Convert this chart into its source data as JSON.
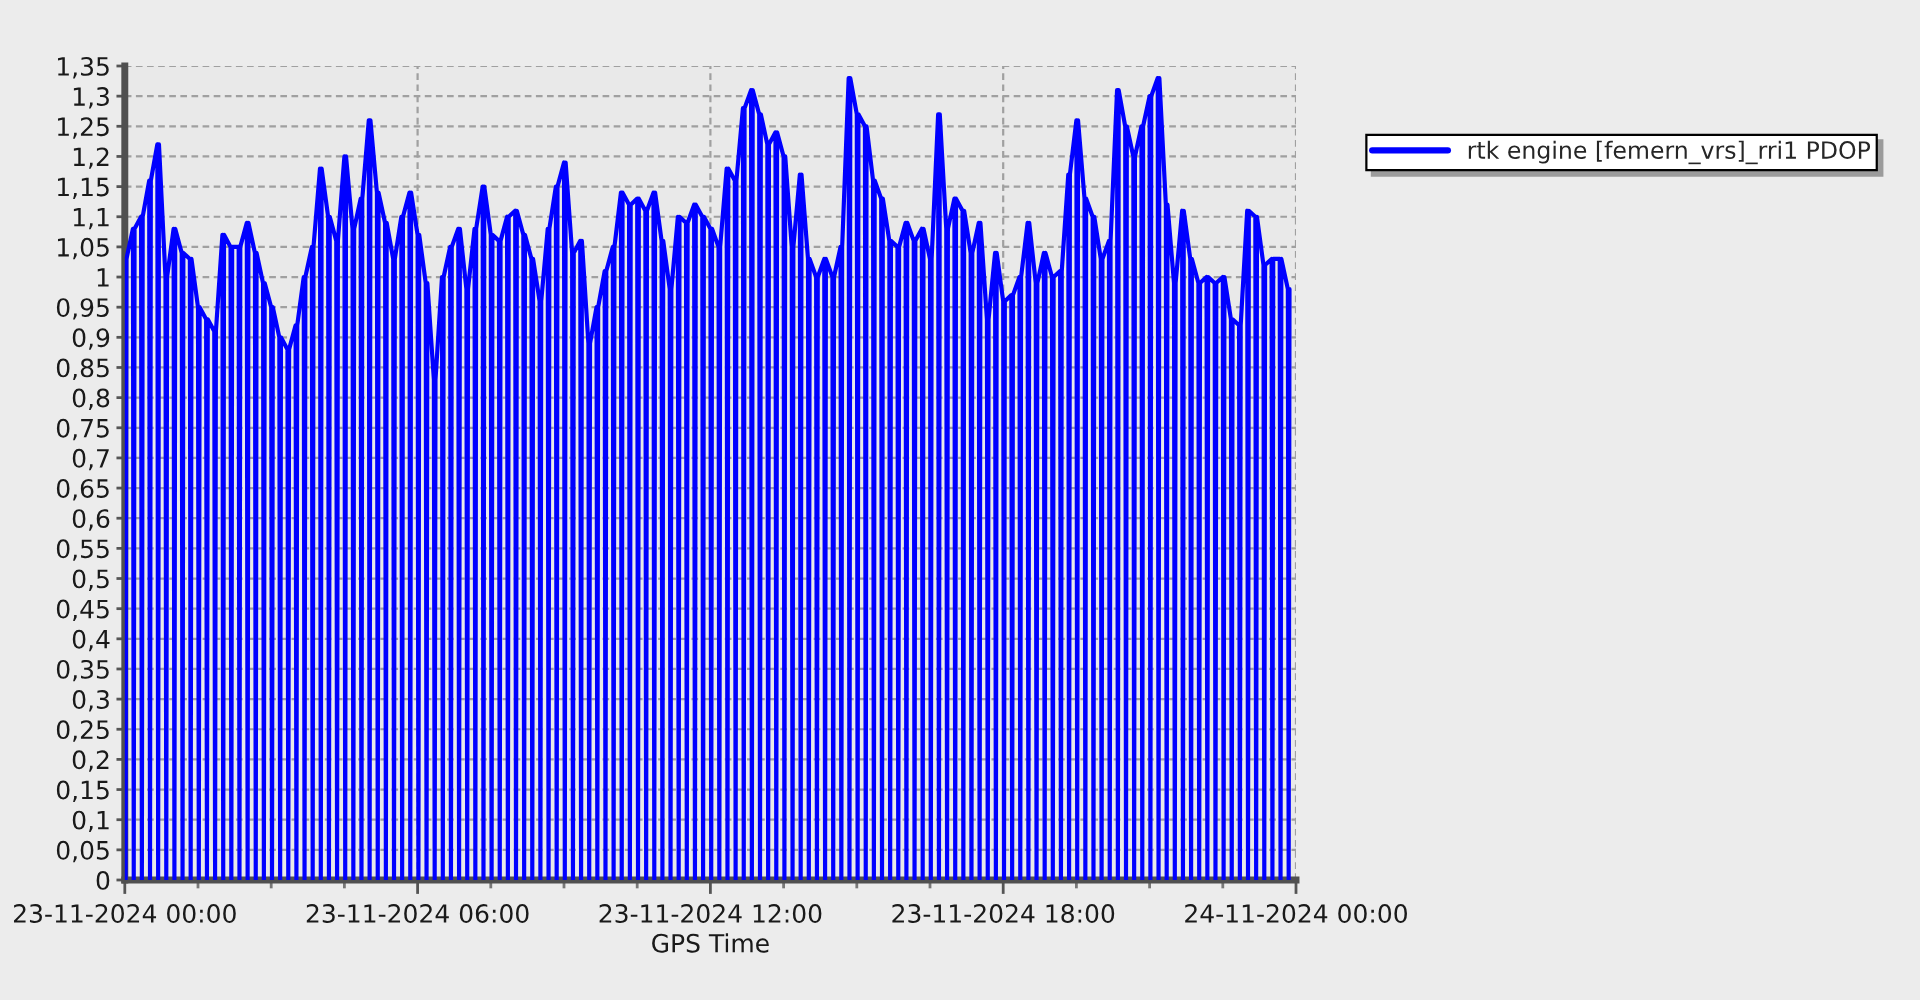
{
  "chart_data": {
    "type": "line",
    "xlabel": "GPS Time",
    "grid": true,
    "legend": "top right",
    "series": [
      {
        "name": "rtk engine [femern_vrs]_rri1 PDOP",
        "color": "#0000ff",
        "x": [
          "2024-11-23T00:00",
          "2024-11-23T00:01",
          "2024-11-23T00:02",
          "2024-11-23T00:10",
          "2024-11-23T00:11",
          "2024-11-23T00:12",
          "2024-11-23T00:20",
          "2024-11-23T00:21",
          "2024-11-23T00:22",
          "2024-11-23T00:30",
          "2024-11-23T00:31",
          "2024-11-23T00:32",
          "2024-11-23T00:40",
          "2024-11-23T00:41",
          "2024-11-23T00:42",
          "2024-11-23T00:50",
          "2024-11-23T00:51",
          "2024-11-23T00:52",
          "2024-11-23T01:00",
          "2024-11-23T01:01",
          "2024-11-23T01:02",
          "2024-11-23T01:10",
          "2024-11-23T01:11",
          "2024-11-23T01:12",
          "2024-11-23T01:20",
          "2024-11-23T01:21",
          "2024-11-23T01:22",
          "2024-11-23T01:30",
          "2024-11-23T01:31",
          "2024-11-23T01:32",
          "2024-11-23T01:40",
          "2024-11-23T01:41",
          "2024-11-23T01:42",
          "2024-11-23T01:50",
          "2024-11-23T01:51",
          "2024-11-23T01:52",
          "2024-11-23T02:00",
          "2024-11-23T02:01",
          "2024-11-23T02:02",
          "2024-11-23T02:10",
          "2024-11-23T02:11",
          "2024-11-23T02:12",
          "2024-11-23T02:20",
          "2024-11-23T02:21",
          "2024-11-23T02:22",
          "2024-11-23T02:30",
          "2024-11-23T02:31",
          "2024-11-23T02:32",
          "2024-11-23T02:40",
          "2024-11-23T02:41",
          "2024-11-23T02:42",
          "2024-11-23T02:50",
          "2024-11-23T02:51",
          "2024-11-23T02:52",
          "2024-11-23T03:00",
          "2024-11-23T03:01",
          "2024-11-23T03:02",
          "2024-11-23T03:10",
          "2024-11-23T03:11",
          "2024-11-23T03:12",
          "2024-11-23T03:20",
          "2024-11-23T03:21",
          "2024-11-23T03:22",
          "2024-11-23T03:30",
          "2024-11-23T03:31",
          "2024-11-23T03:32",
          "2024-11-23T03:40",
          "2024-11-23T03:41",
          "2024-11-23T03:42",
          "2024-11-23T03:50",
          "2024-11-23T03:51",
          "2024-11-23T03:52",
          "2024-11-23T04:00",
          "2024-11-23T04:01",
          "2024-11-23T04:02",
          "2024-11-23T04:10",
          "2024-11-23T04:11",
          "2024-11-23T04:12",
          "2024-11-23T04:20",
          "2024-11-23T04:21",
          "2024-11-23T04:22",
          "2024-11-23T04:30",
          "2024-11-23T04:31",
          "2024-11-23T04:32",
          "2024-11-23T04:40",
          "2024-11-23T04:41",
          "2024-11-23T04:42",
          "2024-11-23T04:50",
          "2024-11-23T04:51",
          "2024-11-23T04:52",
          "2024-11-23T05:00",
          "2024-11-23T05:01",
          "2024-11-23T05:02",
          "2024-11-23T05:10",
          "2024-11-23T05:11",
          "2024-11-23T05:12",
          "2024-11-23T05:20",
          "2024-11-23T05:21",
          "2024-11-23T05:22",
          "2024-11-23T05:30",
          "2024-11-23T05:31",
          "2024-11-23T05:32",
          "2024-11-23T05:40",
          "2024-11-23T05:41",
          "2024-11-23T05:42",
          "2024-11-23T05:50",
          "2024-11-23T05:51",
          "2024-11-23T05:52",
          "2024-11-23T06:00",
          "2024-11-23T06:01",
          "2024-11-23T06:02",
          "2024-11-23T06:10",
          "2024-11-23T06:11",
          "2024-11-23T06:12",
          "2024-11-23T06:20",
          "2024-11-23T06:21",
          "2024-11-23T06:22",
          "2024-11-23T06:30",
          "2024-11-23T06:31",
          "2024-11-23T06:32",
          "2024-11-23T06:40",
          "2024-11-23T06:41",
          "2024-11-23T06:42",
          "2024-11-23T06:50",
          "2024-11-23T06:51",
          "2024-11-23T06:52",
          "2024-11-23T07:00",
          "2024-11-23T07:01",
          "2024-11-23T07:02",
          "2024-11-23T07:10",
          "2024-11-23T07:11",
          "2024-11-23T07:12",
          "2024-11-23T07:20",
          "2024-11-23T07:21",
          "2024-11-23T07:22",
          "2024-11-23T07:30",
          "2024-11-23T07:31",
          "2024-11-23T07:32",
          "2024-11-23T07:40",
          "2024-11-23T07:41",
          "2024-11-23T07:42",
          "2024-11-23T07:50",
          "2024-11-23T07:51",
          "2024-11-23T07:52",
          "2024-11-23T08:00",
          "2024-11-23T08:01",
          "2024-11-23T08:02",
          "2024-11-23T08:10",
          "2024-11-23T08:11",
          "2024-11-23T08:12",
          "2024-11-23T08:20",
          "2024-11-23T08:21",
          "2024-11-23T08:22",
          "2024-11-23T08:30",
          "2024-11-23T08:31",
          "2024-11-23T08:32",
          "2024-11-23T08:40",
          "2024-11-23T08:41",
          "2024-11-23T08:42",
          "2024-11-23T08:50",
          "2024-11-23T08:51",
          "2024-11-23T08:52",
          "2024-11-23T09:00",
          "2024-11-23T09:01",
          "2024-11-23T09:02",
          "2024-11-23T09:10",
          "2024-11-23T09:11",
          "2024-11-23T09:12",
          "2024-11-23T09:20",
          "2024-11-23T09:21",
          "2024-11-23T09:22",
          "2024-11-23T09:30",
          "2024-11-23T09:31",
          "2024-11-23T09:32",
          "2024-11-23T09:40",
          "2024-11-23T09:41",
          "2024-11-23T09:42",
          "2024-11-23T09:50",
          "2024-11-23T09:51",
          "2024-11-23T09:52",
          "2024-11-23T10:00",
          "2024-11-23T10:01",
          "2024-11-23T10:02",
          "2024-11-23T10:10",
          "2024-11-23T10:11",
          "2024-11-23T10:12",
          "2024-11-23T10:20",
          "2024-11-23T10:21",
          "2024-11-23T10:22",
          "2024-11-23T10:30",
          "2024-11-23T10:31",
          "2024-11-23T10:32",
          "2024-11-23T10:40",
          "2024-11-23T10:41",
          "2024-11-23T10:42",
          "2024-11-23T10:50",
          "2024-11-23T10:51",
          "2024-11-23T10:52",
          "2024-11-23T11:00",
          "2024-11-23T11:01",
          "2024-11-23T11:02",
          "2024-11-23T11:10",
          "2024-11-23T11:11",
          "2024-11-23T11:12",
          "2024-11-23T11:20",
          "2024-11-23T11:21",
          "2024-11-23T11:22",
          "2024-11-23T11:30",
          "2024-11-23T11:31",
          "2024-11-23T11:32",
          "2024-11-23T11:40",
          "2024-11-23T11:41",
          "2024-11-23T11:42",
          "2024-11-23T11:50",
          "2024-11-23T11:51",
          "2024-11-23T11:52",
          "2024-11-23T12:00",
          "2024-11-23T12:01",
          "2024-11-23T12:02",
          "2024-11-23T12:10",
          "2024-11-23T12:11",
          "2024-11-23T12:12",
          "2024-11-23T12:20",
          "2024-11-23T12:21",
          "2024-11-23T12:22",
          "2024-11-23T12:30",
          "2024-11-23T12:31",
          "2024-11-23T12:32",
          "2024-11-23T12:40",
          "2024-11-23T12:41",
          "2024-11-23T12:42",
          "2024-11-23T12:50",
          "2024-11-23T12:51",
          "2024-11-23T12:52",
          "2024-11-23T13:00",
          "2024-11-23T13:01",
          "2024-11-23T13:02",
          "2024-11-23T13:10",
          "2024-11-23T13:11",
          "2024-11-23T13:12",
          "2024-11-23T13:20",
          "2024-11-23T13:21",
          "2024-11-23T13:22",
          "2024-11-23T13:30",
          "2024-11-23T13:31",
          "2024-11-23T13:32",
          "2024-11-23T13:40",
          "2024-11-23T13:41",
          "2024-11-23T13:42",
          "2024-11-23T13:50",
          "2024-11-23T13:51",
          "2024-11-23T13:52",
          "2024-11-23T14:00",
          "2024-11-23T14:01",
          "2024-11-23T14:02",
          "2024-11-23T14:10",
          "2024-11-23T14:11",
          "2024-11-23T14:12",
          "2024-11-23T14:20",
          "2024-11-23T14:21",
          "2024-11-23T14:22",
          "2024-11-23T14:30",
          "2024-11-23T14:31",
          "2024-11-23T14:32",
          "2024-11-23T14:40",
          "2024-11-23T14:41",
          "2024-11-23T14:42",
          "2024-11-23T14:50",
          "2024-11-23T14:51",
          "2024-11-23T14:52",
          "2024-11-23T15:00",
          "2024-11-23T15:01",
          "2024-11-23T15:02",
          "2024-11-23T15:10",
          "2024-11-23T15:11",
          "2024-11-23T15:12",
          "2024-11-23T15:20",
          "2024-11-23T15:21",
          "2024-11-23T15:22",
          "2024-11-23T15:30",
          "2024-11-23T15:31",
          "2024-11-23T15:32",
          "2024-11-23T15:40",
          "2024-11-23T15:41",
          "2024-11-23T15:42",
          "2024-11-23T15:50",
          "2024-11-23T15:51",
          "2024-11-23T15:52",
          "2024-11-23T16:00",
          "2024-11-23T16:01",
          "2024-11-23T16:02",
          "2024-11-23T16:10",
          "2024-11-23T16:11",
          "2024-11-23T16:12",
          "2024-11-23T16:20",
          "2024-11-23T16:21",
          "2024-11-23T16:22",
          "2024-11-23T16:30",
          "2024-11-23T16:31",
          "2024-11-23T16:32",
          "2024-11-23T16:40",
          "2024-11-23T16:41",
          "2024-11-23T16:42",
          "2024-11-23T16:50",
          "2024-11-23T16:51",
          "2024-11-23T16:52",
          "2024-11-23T17:00",
          "2024-11-23T17:01",
          "2024-11-23T17:02",
          "2024-11-23T17:10",
          "2024-11-23T17:11",
          "2024-11-23T17:12",
          "2024-11-23T17:20",
          "2024-11-23T17:21",
          "2024-11-23T17:22",
          "2024-11-23T17:30",
          "2024-11-23T17:31",
          "2024-11-23T17:32",
          "2024-11-23T17:40",
          "2024-11-23T17:41",
          "2024-11-23T17:42",
          "2024-11-23T17:50",
          "2024-11-23T17:51",
          "2024-11-23T17:52",
          "2024-11-23T18:00",
          "2024-11-23T18:01",
          "2024-11-23T18:02",
          "2024-11-23T18:10",
          "2024-11-23T18:11",
          "2024-11-23T18:12",
          "2024-11-23T18:20",
          "2024-11-23T18:21",
          "2024-11-23T18:22",
          "2024-11-23T18:30",
          "2024-11-23T18:31",
          "2024-11-23T18:32",
          "2024-11-23T18:40",
          "2024-11-23T18:41",
          "2024-11-23T18:42",
          "2024-11-23T18:50",
          "2024-11-23T18:51",
          "2024-11-23T18:52",
          "2024-11-23T19:00",
          "2024-11-23T19:01",
          "2024-11-23T19:02",
          "2024-11-23T19:10",
          "2024-11-23T19:11",
          "2024-11-23T19:12",
          "2024-11-23T19:20",
          "2024-11-23T19:21",
          "2024-11-23T19:22",
          "2024-11-23T19:30",
          "2024-11-23T19:31",
          "2024-11-23T19:32",
          "2024-11-23T19:40",
          "2024-11-23T19:41",
          "2024-11-23T19:42",
          "2024-11-23T19:50",
          "2024-11-23T19:51",
          "2024-11-23T19:52",
          "2024-11-23T20:00",
          "2024-11-23T20:01",
          "2024-11-23T20:02",
          "2024-11-23T20:10",
          "2024-11-23T20:11",
          "2024-11-23T20:12",
          "2024-11-23T20:20",
          "2024-11-23T20:21",
          "2024-11-23T20:22",
          "2024-11-23T20:30",
          "2024-11-23T20:31",
          "2024-11-23T20:32",
          "2024-11-23T20:40",
          "2024-11-23T20:41",
          "2024-11-23T20:42",
          "2024-11-23T20:50",
          "2024-11-23T20:51",
          "2024-11-23T20:52",
          "2024-11-23T21:00",
          "2024-11-23T21:01",
          "2024-11-23T21:02",
          "2024-11-23T21:10",
          "2024-11-23T21:11",
          "2024-11-23T21:12",
          "2024-11-23T21:20",
          "2024-11-23T21:21",
          "2024-11-23T21:22",
          "2024-11-23T21:30",
          "2024-11-23T21:31",
          "2024-11-23T21:32",
          "2024-11-23T21:40",
          "2024-11-23T21:41",
          "2024-11-23T21:42",
          "2024-11-23T21:50",
          "2024-11-23T21:51",
          "2024-11-23T21:52",
          "2024-11-23T22:00",
          "2024-11-23T22:01",
          "2024-11-23T22:02",
          "2024-11-23T22:10",
          "2024-11-23T22:11",
          "2024-11-23T22:12",
          "2024-11-23T22:20",
          "2024-11-23T22:21",
          "2024-11-23T22:22",
          "2024-11-23T22:30",
          "2024-11-23T22:31",
          "2024-11-23T22:32",
          "2024-11-23T22:40",
          "2024-11-23T22:41",
          "2024-11-23T22:42",
          "2024-11-23T22:50",
          "2024-11-23T22:51",
          "2024-11-23T22:52",
          "2024-11-23T23:00",
          "2024-11-23T23:01",
          "2024-11-23T23:02",
          "2024-11-23T23:10",
          "2024-11-23T23:11",
          "2024-11-23T23:12",
          "2024-11-23T23:20",
          "2024-11-23T23:21",
          "2024-11-23T23:22",
          "2024-11-23T23:30",
          "2024-11-23T23:31",
          "2024-11-23T23:32",
          "2024-11-23T23:40",
          "2024-11-23T23:41",
          "2024-11-23T23:42",
          "2024-11-23T23:50",
          "2024-11-23T23:51",
          "2024-11-23T23:52"
        ],
        "values": [
          1.03,
          0,
          1.03,
          1.08,
          0,
          1.08,
          1.1,
          0,
          1.1,
          1.16,
          0,
          1.16,
          1.22,
          0,
          1.22,
          1.0,
          0,
          1.0,
          1.08,
          0,
          1.08,
          1.04,
          0,
          1.04,
          1.03,
          0,
          1.03,
          0.95,
          0,
          0.95,
          0.93,
          0,
          0.93,
          0.91,
          0,
          0.91,
          1.07,
          0,
          1.07,
          1.05,
          0,
          1.05,
          1.05,
          0,
          1.05,
          1.09,
          0,
          1.09,
          1.04,
          0,
          1.04,
          0.99,
          0,
          0.99,
          0.95,
          0,
          0.95,
          0.9,
          0,
          0.9,
          0.88,
          0,
          0.88,
          0.92,
          0,
          0.92,
          1.0,
          0,
          1.0,
          1.05,
          0,
          1.05,
          1.18,
          0,
          1.18,
          1.1,
          0,
          1.1,
          1.06,
          0,
          1.06,
          1.2,
          0,
          1.2,
          1.08,
          0,
          1.08,
          1.13,
          0,
          1.13,
          1.26,
          0,
          1.26,
          1.14,
          0,
          1.14,
          1.09,
          0,
          1.09,
          1.03,
          0,
          1.03,
          1.1,
          0,
          1.1,
          1.14,
          0,
          1.14,
          1.07,
          0,
          1.07,
          0.99,
          0,
          0.99,
          0.83,
          0,
          0.83,
          1.0,
          0,
          1.0,
          1.05,
          0,
          1.05,
          1.08,
          0,
          1.08,
          0.98,
          0,
          0.98,
          1.08,
          0,
          1.08,
          1.15,
          0,
          1.15,
          1.07,
          0,
          1.07,
          1.06,
          0,
          1.06,
          1.1,
          0,
          1.1,
          1.11,
          0,
          1.11,
          1.07,
          0,
          1.07,
          1.03,
          0,
          1.03,
          0.96,
          0,
          0.96,
          1.08,
          0,
          1.08,
          1.15,
          0,
          1.15,
          1.19,
          0,
          1.19,
          1.04,
          0,
          1.04,
          1.06,
          0,
          1.06,
          0.89,
          0,
          0.89,
          0.95,
          0,
          0.95,
          1.01,
          0,
          1.01,
          1.05,
          0,
          1.05,
          1.14,
          0,
          1.14,
          1.12,
          0,
          1.12,
          1.13,
          0,
          1.13,
          1.11,
          0,
          1.11,
          1.14,
          0,
          1.14,
          1.06,
          0,
          1.06,
          0.98,
          0,
          0.98,
          1.1,
          0,
          1.1,
          1.09,
          0,
          1.09,
          1.12,
          0,
          1.12,
          1.1,
          0,
          1.1,
          1.08,
          0,
          1.08,
          1.05,
          0,
          1.05,
          1.18,
          0,
          1.18,
          1.16,
          0,
          1.16,
          1.28,
          0,
          1.28,
          1.31,
          0,
          1.31,
          1.27,
          0,
          1.27,
          1.22,
          0,
          1.22,
          1.24,
          0,
          1.24,
          1.2,
          0,
          1.2,
          1.05,
          0,
          1.05,
          1.17,
          0,
          1.17,
          1.03,
          0,
          1.03,
          1.0,
          0,
          1.0,
          1.03,
          0,
          1.03,
          1.0,
          0,
          1.0,
          1.05,
          0,
          1.05,
          1.33,
          0,
          1.33,
          1.27,
          0,
          1.27,
          1.25,
          0,
          1.25,
          1.16,
          0,
          1.16,
          1.13,
          0,
          1.13,
          1.06,
          0,
          1.06,
          1.05,
          0,
          1.05,
          1.09,
          0,
          1.09,
          1.06,
          0,
          1.06,
          1.08,
          0,
          1.08,
          1.03,
          0,
          1.03,
          1.27,
          0,
          1.27,
          1.08,
          0,
          1.08,
          1.13,
          0,
          1.13,
          1.11,
          0,
          1.11,
          1.04,
          0,
          1.04,
          1.09,
          0,
          1.09,
          0.93,
          0,
          0.93,
          1.04,
          0,
          1.04,
          0.96,
          0,
          0.96,
          0.97,
          0,
          0.97,
          1.0,
          0,
          1.0,
          1.09,
          0,
          1.09,
          0.99,
          0,
          0.99,
          1.04,
          0,
          1.04,
          1.0,
          0,
          1.0,
          1.01,
          0,
          1.01,
          1.17,
          0,
          1.17,
          1.26,
          0,
          1.26,
          1.13,
          0,
          1.13,
          1.1,
          0,
          1.1,
          1.03,
          0,
          1.03,
          1.06,
          0,
          1.06,
          1.31,
          0,
          1.31,
          1.25,
          0,
          1.25,
          1.2,
          0,
          1.2,
          1.25,
          0,
          1.25,
          1.3,
          0,
          1.3,
          1.33,
          0,
          1.33,
          1.12,
          0,
          1.12,
          0.99,
          0,
          0.99,
          1.11,
          0,
          1.11,
          1.03,
          0,
          1.03,
          0.99,
          0,
          0.99,
          1.0,
          0,
          1.0,
          0.99,
          0,
          0.99,
          1.0,
          0,
          1.0,
          0.93,
          0,
          0.93,
          0.92,
          0,
          0.92,
          1.11,
          0,
          1.11,
          1.1,
          0,
          1.1,
          1.02,
          0,
          1.02,
          1.03,
          0,
          1.03,
          1.03,
          0,
          1.03,
          0.98,
          0,
          0.98
        ]
      }
    ],
    "xlim": [
      "2024-11-23T00:00",
      "2024-11-24T00:00"
    ],
    "xticks": [
      {
        "value": "2024-11-23T00:00",
        "label": "23-11-2024 00:00"
      },
      {
        "value": "2024-11-23T01:30",
        "label": null
      },
      {
        "value": "2024-11-23T03:00",
        "label": null
      },
      {
        "value": "2024-11-23T04:30",
        "label": null
      },
      {
        "value": "2024-11-23T06:00",
        "label": "23-11-2024 06:00"
      },
      {
        "value": "2024-11-23T07:30",
        "label": null
      },
      {
        "value": "2024-11-23T09:00",
        "label": null
      },
      {
        "value": "2024-11-23T10:30",
        "label": null
      },
      {
        "value": "2024-11-23T12:00",
        "label": "23-11-2024 12:00"
      },
      {
        "value": "2024-11-23T13:30",
        "label": null
      },
      {
        "value": "2024-11-23T15:00",
        "label": null
      },
      {
        "value": "2024-11-23T16:30",
        "label": null
      },
      {
        "value": "2024-11-23T18:00",
        "label": "23-11-2024 18:00"
      },
      {
        "value": "2024-11-23T19:30",
        "label": null
      },
      {
        "value": "2024-11-23T21:00",
        "label": null
      },
      {
        "value": "2024-11-23T22:30",
        "label": null
      },
      {
        "value": "2024-11-24T00:00",
        "label": "24-11-2024 00:00"
      }
    ],
    "ylim": [
      0,
      1.35
    ],
    "yticks": [
      0,
      {
        "value": 0.05,
        "label": "0,05"
      },
      {
        "value": 0.1,
        "label": "0,1"
      },
      {
        "value": 0.15,
        "label": "0,15"
      },
      {
        "value": 0.2,
        "label": "0,2"
      },
      {
        "value": 0.25,
        "label": "0,25"
      },
      {
        "value": 0.3,
        "label": "0,3"
      },
      {
        "value": 0.35,
        "label": "0,35"
      },
      {
        "value": 0.4,
        "label": "0,4"
      },
      {
        "value": 0.45,
        "label": "0,45"
      },
      {
        "value": 0.5,
        "label": "0,5"
      },
      {
        "value": 0.55,
        "label": "0,55"
      },
      {
        "value": 0.6,
        "label": "0,6"
      },
      {
        "value": 0.65,
        "label": "0,65"
      },
      {
        "value": 0.7,
        "label": "0,7"
      },
      {
        "value": 0.75,
        "label": "0,75"
      },
      {
        "value": 0.8,
        "label": "0,8"
      },
      {
        "value": 0.85,
        "label": "0,85"
      },
      {
        "value": 0.9,
        "label": "0,9"
      },
      {
        "value": 0.95,
        "label": "0,95"
      },
      1,
      {
        "value": 1.05,
        "label": "1,05"
      },
      {
        "value": 1.1,
        "label": "1,1"
      },
      {
        "value": 1.15,
        "label": "1,15"
      },
      {
        "value": 1.2,
        "label": "1,2"
      },
      {
        "value": 1.25,
        "label": "1,25"
      },
      {
        "value": 1.3,
        "label": "1,3"
      },
      {
        "value": 1.35,
        "label": "1,35"
      }
    ]
  }
}
